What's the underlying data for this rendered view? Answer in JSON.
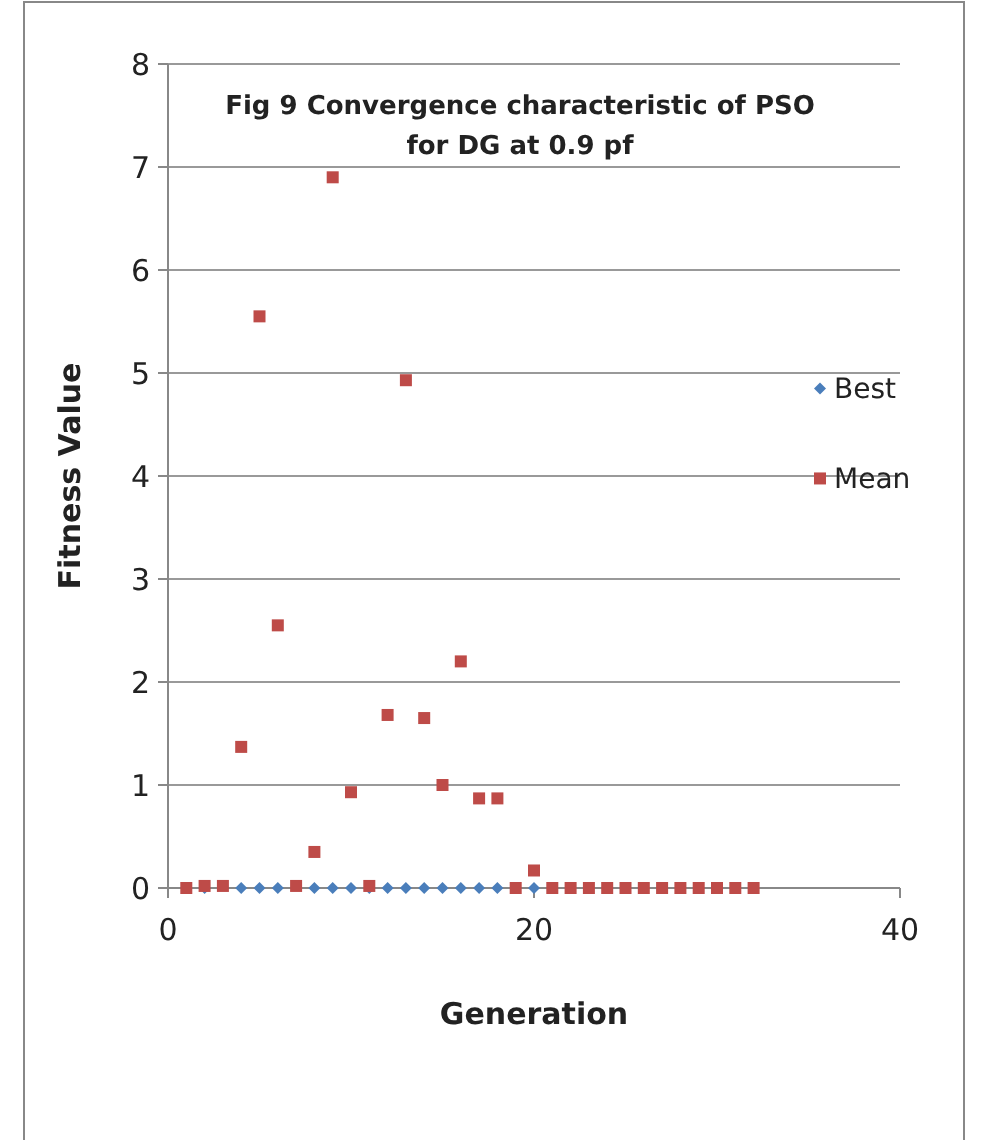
{
  "chart_data": {
    "type": "scatter",
    "title": "Fig 9 Convergence characteristic of PSO\nfor DG at 0.9 pf",
    "xlabel": "Generation",
    "ylabel": "Fitness Value",
    "xlim": [
      0,
      40
    ],
    "xticks": [
      0,
      20,
      40
    ],
    "ylim": [
      0,
      8
    ],
    "yticks": [
      0,
      1,
      2,
      3,
      4,
      5,
      6,
      7,
      8
    ],
    "grid": "y",
    "legend": "right",
    "series": [
      {
        "name": "Best",
        "color": "#4a7ebb",
        "marker": "diamond",
        "x": [
          2,
          4,
          5,
          6,
          8,
          9,
          10,
          11,
          12,
          13,
          14,
          15,
          16,
          17,
          18,
          20
        ],
        "values": [
          0,
          0,
          0,
          0,
          0,
          0,
          0,
          0,
          0,
          0,
          0,
          0,
          0,
          0,
          0,
          0
        ]
      },
      {
        "name": "Mean",
        "color": "#be4b48",
        "marker": "square",
        "x": [
          1,
          2,
          3,
          4,
          5,
          6,
          7,
          8,
          9,
          10,
          11,
          12,
          13,
          14,
          15,
          16,
          17,
          18,
          19,
          20,
          21,
          22,
          23,
          24,
          25,
          26,
          27,
          28,
          29,
          30,
          31,
          32
        ],
        "values": [
          0,
          0.02,
          0.02,
          1.37,
          5.55,
          2.55,
          0.02,
          0.35,
          6.9,
          0.93,
          0.02,
          1.68,
          4.93,
          1.65,
          1,
          2.2,
          0.87,
          0.87,
          0,
          0.17,
          0,
          0,
          0,
          0,
          0,
          0,
          0,
          0,
          0,
          0,
          0,
          0
        ]
      }
    ]
  }
}
